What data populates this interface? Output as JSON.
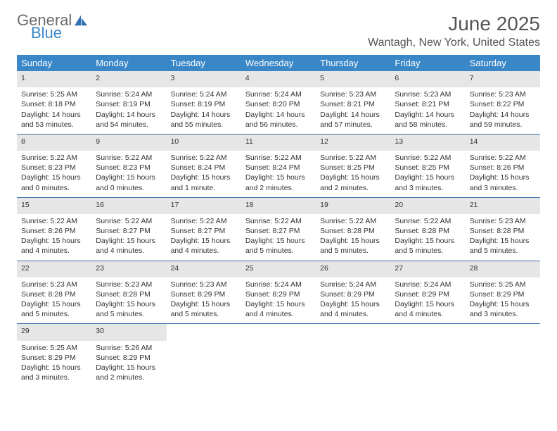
{
  "logo": {
    "text1": "General",
    "text2": "Blue"
  },
  "title": "June 2025",
  "location": "Wantagh, New York, United States",
  "header_bg": "#3a87c8",
  "daynum_bg": "#e6e6e6",
  "border_color": "#3a6fa8",
  "weekdays": [
    "Sunday",
    "Monday",
    "Tuesday",
    "Wednesday",
    "Thursday",
    "Friday",
    "Saturday"
  ],
  "weeks": [
    [
      {
        "n": "1",
        "sr": "Sunrise: 5:25 AM",
        "ss": "Sunset: 8:18 PM",
        "d1": "Daylight: 14 hours",
        "d2": "and 53 minutes."
      },
      {
        "n": "2",
        "sr": "Sunrise: 5:24 AM",
        "ss": "Sunset: 8:19 PM",
        "d1": "Daylight: 14 hours",
        "d2": "and 54 minutes."
      },
      {
        "n": "3",
        "sr": "Sunrise: 5:24 AM",
        "ss": "Sunset: 8:19 PM",
        "d1": "Daylight: 14 hours",
        "d2": "and 55 minutes."
      },
      {
        "n": "4",
        "sr": "Sunrise: 5:24 AM",
        "ss": "Sunset: 8:20 PM",
        "d1": "Daylight: 14 hours",
        "d2": "and 56 minutes."
      },
      {
        "n": "5",
        "sr": "Sunrise: 5:23 AM",
        "ss": "Sunset: 8:21 PM",
        "d1": "Daylight: 14 hours",
        "d2": "and 57 minutes."
      },
      {
        "n": "6",
        "sr": "Sunrise: 5:23 AM",
        "ss": "Sunset: 8:21 PM",
        "d1": "Daylight: 14 hours",
        "d2": "and 58 minutes."
      },
      {
        "n": "7",
        "sr": "Sunrise: 5:23 AM",
        "ss": "Sunset: 8:22 PM",
        "d1": "Daylight: 14 hours",
        "d2": "and 59 minutes."
      }
    ],
    [
      {
        "n": "8",
        "sr": "Sunrise: 5:22 AM",
        "ss": "Sunset: 8:23 PM",
        "d1": "Daylight: 15 hours",
        "d2": "and 0 minutes."
      },
      {
        "n": "9",
        "sr": "Sunrise: 5:22 AM",
        "ss": "Sunset: 8:23 PM",
        "d1": "Daylight: 15 hours",
        "d2": "and 0 minutes."
      },
      {
        "n": "10",
        "sr": "Sunrise: 5:22 AM",
        "ss": "Sunset: 8:24 PM",
        "d1": "Daylight: 15 hours",
        "d2": "and 1 minute."
      },
      {
        "n": "11",
        "sr": "Sunrise: 5:22 AM",
        "ss": "Sunset: 8:24 PM",
        "d1": "Daylight: 15 hours",
        "d2": "and 2 minutes."
      },
      {
        "n": "12",
        "sr": "Sunrise: 5:22 AM",
        "ss": "Sunset: 8:25 PM",
        "d1": "Daylight: 15 hours",
        "d2": "and 2 minutes."
      },
      {
        "n": "13",
        "sr": "Sunrise: 5:22 AM",
        "ss": "Sunset: 8:25 PM",
        "d1": "Daylight: 15 hours",
        "d2": "and 3 minutes."
      },
      {
        "n": "14",
        "sr": "Sunrise: 5:22 AM",
        "ss": "Sunset: 8:26 PM",
        "d1": "Daylight: 15 hours",
        "d2": "and 3 minutes."
      }
    ],
    [
      {
        "n": "15",
        "sr": "Sunrise: 5:22 AM",
        "ss": "Sunset: 8:26 PM",
        "d1": "Daylight: 15 hours",
        "d2": "and 4 minutes."
      },
      {
        "n": "16",
        "sr": "Sunrise: 5:22 AM",
        "ss": "Sunset: 8:27 PM",
        "d1": "Daylight: 15 hours",
        "d2": "and 4 minutes."
      },
      {
        "n": "17",
        "sr": "Sunrise: 5:22 AM",
        "ss": "Sunset: 8:27 PM",
        "d1": "Daylight: 15 hours",
        "d2": "and 4 minutes."
      },
      {
        "n": "18",
        "sr": "Sunrise: 5:22 AM",
        "ss": "Sunset: 8:27 PM",
        "d1": "Daylight: 15 hours",
        "d2": "and 5 minutes."
      },
      {
        "n": "19",
        "sr": "Sunrise: 5:22 AM",
        "ss": "Sunset: 8:28 PM",
        "d1": "Daylight: 15 hours",
        "d2": "and 5 minutes."
      },
      {
        "n": "20",
        "sr": "Sunrise: 5:22 AM",
        "ss": "Sunset: 8:28 PM",
        "d1": "Daylight: 15 hours",
        "d2": "and 5 minutes."
      },
      {
        "n": "21",
        "sr": "Sunrise: 5:23 AM",
        "ss": "Sunset: 8:28 PM",
        "d1": "Daylight: 15 hours",
        "d2": "and 5 minutes."
      }
    ],
    [
      {
        "n": "22",
        "sr": "Sunrise: 5:23 AM",
        "ss": "Sunset: 8:28 PM",
        "d1": "Daylight: 15 hours",
        "d2": "and 5 minutes."
      },
      {
        "n": "23",
        "sr": "Sunrise: 5:23 AM",
        "ss": "Sunset: 8:28 PM",
        "d1": "Daylight: 15 hours",
        "d2": "and 5 minutes."
      },
      {
        "n": "24",
        "sr": "Sunrise: 5:23 AM",
        "ss": "Sunset: 8:29 PM",
        "d1": "Daylight: 15 hours",
        "d2": "and 5 minutes."
      },
      {
        "n": "25",
        "sr": "Sunrise: 5:24 AM",
        "ss": "Sunset: 8:29 PM",
        "d1": "Daylight: 15 hours",
        "d2": "and 4 minutes."
      },
      {
        "n": "26",
        "sr": "Sunrise: 5:24 AM",
        "ss": "Sunset: 8:29 PM",
        "d1": "Daylight: 15 hours",
        "d2": "and 4 minutes."
      },
      {
        "n": "27",
        "sr": "Sunrise: 5:24 AM",
        "ss": "Sunset: 8:29 PM",
        "d1": "Daylight: 15 hours",
        "d2": "and 4 minutes."
      },
      {
        "n": "28",
        "sr": "Sunrise: 5:25 AM",
        "ss": "Sunset: 8:29 PM",
        "d1": "Daylight: 15 hours",
        "d2": "and 3 minutes."
      }
    ],
    [
      {
        "n": "29",
        "sr": "Sunrise: 5:25 AM",
        "ss": "Sunset: 8:29 PM",
        "d1": "Daylight: 15 hours",
        "d2": "and 3 minutes."
      },
      {
        "n": "30",
        "sr": "Sunrise: 5:26 AM",
        "ss": "Sunset: 8:29 PM",
        "d1": "Daylight: 15 hours",
        "d2": "and 2 minutes."
      },
      null,
      null,
      null,
      null,
      null
    ]
  ]
}
